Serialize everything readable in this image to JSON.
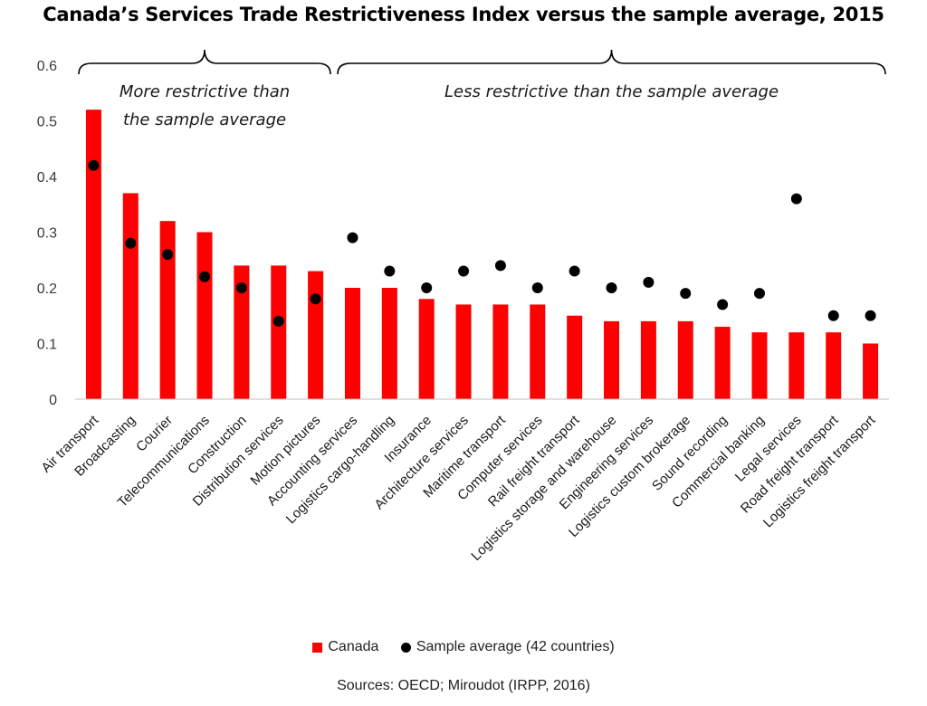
{
  "chart_data": {
    "type": "bar",
    "title": "Canada’s Services Trade Restrictiveness Index versus the sample average, 2015",
    "ylim": [
      0,
      0.6
    ],
    "yticks": [
      "0",
      "0.1",
      "0.2",
      "0.3",
      "0.4",
      "0.5",
      "0.6"
    ],
    "grid": false,
    "legend_position": "bottom",
    "categories": [
      "Air transport",
      "Broadcasting",
      "Courier",
      "Telecommunications",
      "Construction",
      "Distribution services",
      "Motion pictures",
      "Accounting services",
      "Logistics cargo-handling",
      "Insurance",
      "Architecture services",
      "Maritime transport",
      "Computer services",
      "Rail freight transport",
      "Logistics storage and warehouse",
      "Engineering services",
      "Logistics custom brokerage",
      "Sound recording",
      "Commercial banking",
      "Legal services",
      "Road freight transport",
      "Logistics freight transport"
    ],
    "series": [
      {
        "name": "Canada",
        "kind": "bar",
        "color": "#ff0000",
        "values": [
          0.52,
          0.37,
          0.32,
          0.3,
          0.24,
          0.24,
          0.23,
          0.2,
          0.2,
          0.18,
          0.17,
          0.17,
          0.17,
          0.15,
          0.14,
          0.14,
          0.14,
          0.13,
          0.12,
          0.12,
          0.12,
          0.1
        ]
      },
      {
        "name": "Sample average (42 countries)",
        "kind": "scatter",
        "color": "#000000",
        "values": [
          0.42,
          0.28,
          0.26,
          0.22,
          0.2,
          0.14,
          0.18,
          0.29,
          0.23,
          0.2,
          0.23,
          0.24,
          0.2,
          0.23,
          0.2,
          0.21,
          0.19,
          0.17,
          0.19,
          0.36,
          0.15,
          0.15
        ]
      }
    ],
    "annotations": [
      {
        "text_lines": [
          "More restrictive than",
          "the sample average"
        ],
        "spans_categories": [
          0,
          6
        ]
      },
      {
        "text_lines": [
          "Less restrictive than the sample average"
        ],
        "spans_categories": [
          7,
          21
        ]
      }
    ]
  },
  "source_note": "Sources: OECD; Miroudot (IRPP, 2016)"
}
